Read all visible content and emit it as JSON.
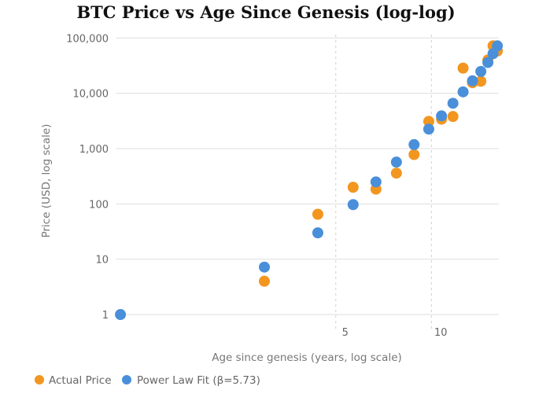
{
  "chart_data": {
    "type": "scatter",
    "title": "BTC Price vs Age Since Genesis (log-log)",
    "xlabel": "Age since genesis (years, log scale)",
    "ylabel": "Price (USD, log scale)",
    "x_scale": "log",
    "y_scale": "log",
    "xlim": [
      1.02,
      16.3
    ],
    "ylim": [
      0.85,
      115000
    ],
    "x_ticks": [
      5,
      10
    ],
    "x_tick_labels": [
      "5",
      "10"
    ],
    "y_ticks": [
      1,
      10,
      100,
      1000,
      10000,
      100000
    ],
    "y_tick_labels": [
      "1",
      "10",
      "100",
      "1,000",
      "10,000",
      "100,000"
    ],
    "grid": {
      "horizontal": "solid",
      "vertical": "dashed"
    },
    "legend_position": "bottom-left",
    "series": [
      {
        "name": "Actual Price",
        "color": "#F2961F",
        "points": [
          [
            2.98,
            4
          ],
          [
            4.39,
            65
          ],
          [
            5.67,
            200
          ],
          [
            6.69,
            185
          ],
          [
            7.76,
            360
          ],
          [
            8.82,
            780
          ],
          [
            9.81,
            3100
          ],
          [
            10.76,
            3400
          ],
          [
            11.69,
            3800
          ],
          [
            12.58,
            28500
          ],
          [
            13.47,
            15500
          ],
          [
            14.31,
            16500
          ],
          [
            15.06,
            40000
          ],
          [
            15.63,
            72000
          ],
          [
            16.13,
            58000
          ]
        ]
      },
      {
        "name": "Power Law Fit (β=5.73)",
        "color": "#4A8FD9",
        "points": [
          [
            1.05,
            1.0
          ],
          [
            2.98,
            7.2
          ],
          [
            4.39,
            30
          ],
          [
            5.67,
            97
          ],
          [
            6.69,
            250
          ],
          [
            7.76,
            570
          ],
          [
            8.82,
            1180
          ],
          [
            9.81,
            2250
          ],
          [
            10.76,
            3900
          ],
          [
            11.69,
            6600
          ],
          [
            12.58,
            10600
          ],
          [
            13.47,
            16800
          ],
          [
            14.31,
            24800
          ],
          [
            15.06,
            36000
          ],
          [
            15.63,
            52000
          ],
          [
            16.13,
            72000
          ]
        ]
      }
    ]
  }
}
